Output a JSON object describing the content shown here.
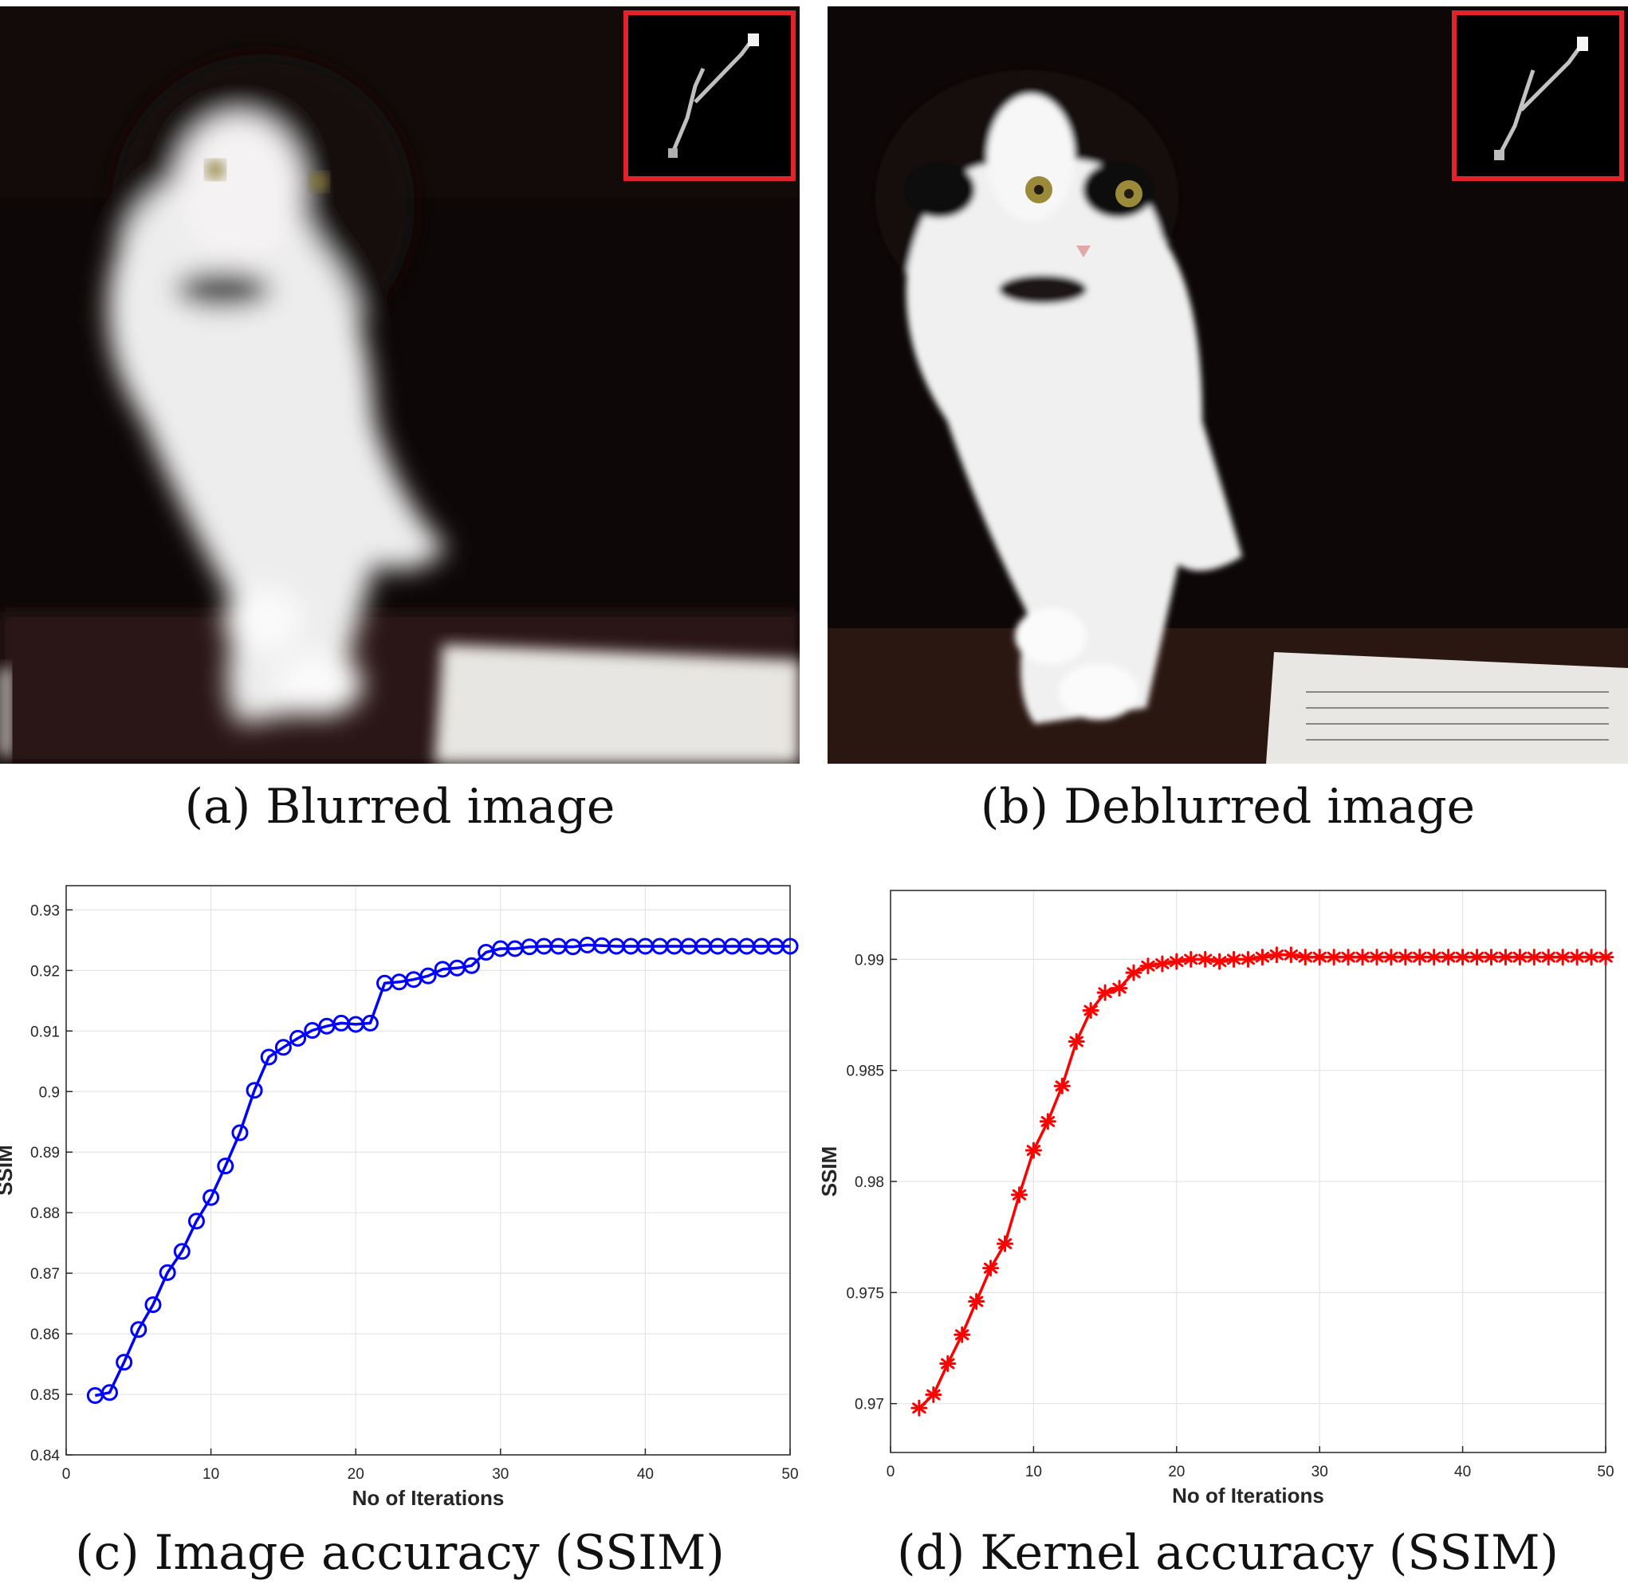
{
  "panels": [
    {
      "id": "a",
      "caption": "(a) Blurred image"
    },
    {
      "id": "b",
      "caption": "(b) Deblurred image"
    },
    {
      "id": "c",
      "caption": "(c) Image accuracy (SSIM)"
    },
    {
      "id": "d",
      "caption": "(d) Kernel accuracy (SSIM)"
    }
  ],
  "inset_frame_color": "#e3222b",
  "chart_data": [
    {
      "type": "line",
      "xlabel": "No of Iterations",
      "ylabel": "SSIM",
      "xlim": [
        0,
        50
      ],
      "ylim": [
        0.84,
        0.934
      ],
      "xticks": [
        0,
        10,
        20,
        30,
        40,
        50
      ],
      "yticks": [
        0.84,
        0.85,
        0.86,
        0.87,
        0.88,
        0.89,
        0.9,
        0.91,
        0.92,
        0.93
      ],
      "ytick_labels": [
        "0.84",
        "0.85",
        "0.86",
        "0.87",
        "0.88",
        "0.89",
        "0.9",
        "0.91",
        "0.92",
        "0.93"
      ],
      "grid": true,
      "marker": "circle",
      "color": "#0000ff",
      "series": [
        {
          "x": [
            2,
            3,
            4,
            5,
            6,
            7,
            8,
            9,
            10,
            11,
            12,
            13,
            14,
            15,
            16,
            17,
            18,
            19,
            20,
            21,
            22,
            23,
            24,
            25,
            26,
            27,
            28,
            29,
            30,
            31,
            32,
            33,
            34,
            35,
            36,
            37,
            38,
            39,
            40,
            41,
            42,
            43,
            44,
            45,
            46,
            47,
            48,
            49,
            50
          ],
          "values": [
            0.8498,
            0.8503,
            0.8553,
            0.8607,
            0.8648,
            0.8701,
            0.8736,
            0.8786,
            0.8825,
            0.8877,
            0.8932,
            0.9002,
            0.9057,
            0.9073,
            0.9088,
            0.9101,
            0.9108,
            0.9113,
            0.9111,
            0.9113,
            0.9179,
            0.9181,
            0.9185,
            0.9191,
            0.9202,
            0.9204,
            0.9208,
            0.923,
            0.9236,
            0.9236,
            0.9239,
            0.924,
            0.924,
            0.9239,
            0.9242,
            0.9241,
            0.924,
            0.924,
            0.924,
            0.924,
            0.924,
            0.924,
            0.924,
            0.924,
            0.924,
            0.924,
            0.924,
            0.924,
            0.924
          ]
        }
      ]
    },
    {
      "type": "line",
      "xlabel": "No of Iterations",
      "ylabel": "SSIM",
      "xlim": [
        0,
        50
      ],
      "ylim": [
        0.9678,
        0.9931
      ],
      "xticks": [
        0,
        10,
        20,
        30,
        40,
        50
      ],
      "yticks": [
        0.97,
        0.975,
        0.98,
        0.985,
        0.99
      ],
      "ytick_labels": [
        "0.97",
        "0.975",
        "0.98",
        "0.985",
        "0.99"
      ],
      "grid": true,
      "marker": "asterisk",
      "color": "#ff0000",
      "series": [
        {
          "x": [
            2,
            3,
            4,
            5,
            6,
            7,
            8,
            9,
            10,
            11,
            12,
            13,
            14,
            15,
            16,
            17,
            18,
            19,
            20,
            21,
            22,
            23,
            24,
            25,
            26,
            27,
            28,
            29,
            30,
            31,
            32,
            33,
            34,
            35,
            36,
            37,
            38,
            39,
            40,
            41,
            42,
            43,
            44,
            45,
            46,
            47,
            48,
            49,
            50
          ],
          "values": [
            0.9698,
            0.9704,
            0.9718,
            0.9731,
            0.9746,
            0.9761,
            0.9772,
            0.9794,
            0.9814,
            0.9827,
            0.9843,
            0.9863,
            0.9877,
            0.9885,
            0.9887,
            0.9894,
            0.9897,
            0.9898,
            0.9899,
            0.99,
            0.99,
            0.9899,
            0.99,
            0.99,
            0.9901,
            0.9902,
            0.9902,
            0.9901,
            0.9901,
            0.9901,
            0.9901,
            0.9901,
            0.9901,
            0.9901,
            0.9901,
            0.9901,
            0.9901,
            0.9901,
            0.9901,
            0.9901,
            0.9901,
            0.9901,
            0.9901,
            0.9901,
            0.9901,
            0.9901,
            0.9901,
            0.9901,
            0.9901
          ]
        }
      ]
    }
  ]
}
